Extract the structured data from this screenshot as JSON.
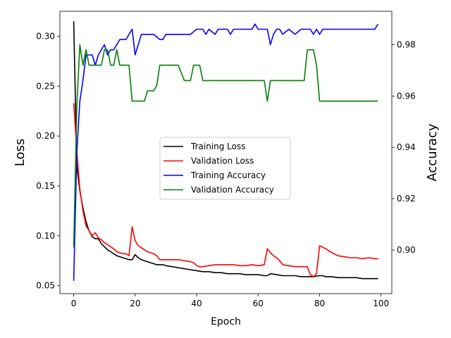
{
  "chart_data": {
    "type": "line",
    "xlabel": "Epoch",
    "ylabel_left": "Loss",
    "ylabel_right": "Accuracy",
    "xlim": [
      -4.5,
      103.5
    ],
    "ylim_left": [
      0.042,
      0.325
    ],
    "ylim_right": [
      0.883,
      0.993
    ],
    "x_ticks": [
      0,
      20,
      40,
      60,
      80,
      100
    ],
    "y_ticks_left": [
      0.05,
      0.1,
      0.15,
      0.2,
      0.25,
      0.3
    ],
    "y_ticks_right": [
      0.9,
      0.92,
      0.94,
      0.96,
      0.98
    ],
    "grid": false,
    "legend_position": "center",
    "series": [
      {
        "name": "Training Loss",
        "axis": "left",
        "color": "#000000",
        "x": [
          0,
          1,
          2,
          3,
          4,
          5,
          6,
          7,
          8,
          9,
          10,
          11,
          12,
          13,
          14,
          15,
          16,
          17,
          18,
          19,
          20,
          21,
          22,
          23,
          24,
          25,
          26,
          27,
          28,
          29,
          30,
          32,
          34,
          36,
          38,
          40,
          42,
          44,
          46,
          48,
          50,
          52,
          54,
          56,
          58,
          60,
          62,
          63,
          64,
          66,
          68,
          70,
          72,
          74,
          76,
          78,
          80,
          81,
          82,
          84,
          86,
          88,
          90,
          92,
          94,
          96,
          98,
          99
        ],
        "y": [
          0.315,
          0.17,
          0.145,
          0.128,
          0.114,
          0.105,
          0.099,
          0.097,
          0.097,
          0.092,
          0.089,
          0.086,
          0.084,
          0.082,
          0.08,
          0.079,
          0.078,
          0.077,
          0.076,
          0.076,
          0.081,
          0.078,
          0.076,
          0.075,
          0.074,
          0.073,
          0.072,
          0.071,
          0.071,
          0.071,
          0.07,
          0.069,
          0.068,
          0.067,
          0.066,
          0.065,
          0.064,
          0.064,
          0.063,
          0.063,
          0.062,
          0.062,
          0.062,
          0.061,
          0.061,
          0.061,
          0.06,
          0.06,
          0.062,
          0.061,
          0.06,
          0.06,
          0.06,
          0.059,
          0.059,
          0.059,
          0.06,
          0.06,
          0.059,
          0.059,
          0.058,
          0.058,
          0.058,
          0.058,
          0.057,
          0.057,
          0.057,
          0.057
        ]
      },
      {
        "name": "Validation Loss",
        "axis": "left",
        "color": "#ff0000",
        "x": [
          0,
          1,
          2,
          3,
          4,
          5,
          6,
          7,
          8,
          9,
          10,
          11,
          12,
          13,
          14,
          15,
          16,
          17,
          18,
          19,
          20,
          21,
          22,
          23,
          24,
          25,
          26,
          27,
          28,
          30,
          32,
          34,
          36,
          38,
          39,
          40,
          41,
          42,
          44,
          46,
          48,
          50,
          52,
          54,
          56,
          58,
          60,
          62,
          63,
          64,
          65,
          66,
          67,
          68,
          70,
          72,
          74,
          75,
          76,
          77,
          78,
          79,
          80,
          82,
          84,
          86,
          88,
          90,
          92,
          94,
          96,
          98,
          99
        ],
        "y": [
          0.233,
          0.185,
          0.147,
          0.125,
          0.11,
          0.105,
          0.1,
          0.103,
          0.098,
          0.096,
          0.093,
          0.091,
          0.089,
          0.087,
          0.084,
          0.083,
          0.082,
          0.082,
          0.08,
          0.109,
          0.095,
          0.09,
          0.088,
          0.086,
          0.084,
          0.083,
          0.082,
          0.08,
          0.076,
          0.076,
          0.076,
          0.076,
          0.075,
          0.074,
          0.073,
          0.07,
          0.069,
          0.069,
          0.07,
          0.071,
          0.071,
          0.071,
          0.071,
          0.07,
          0.07,
          0.071,
          0.07,
          0.071,
          0.087,
          0.083,
          0.08,
          0.078,
          0.075,
          0.071,
          0.07,
          0.069,
          0.069,
          0.069,
          0.069,
          0.061,
          0.059,
          0.062,
          0.09,
          0.087,
          0.083,
          0.08,
          0.079,
          0.078,
          0.078,
          0.077,
          0.078,
          0.077,
          0.077
        ]
      },
      {
        "name": "Training Accuracy",
        "axis": "right",
        "color": "#0000ff",
        "x": [
          0,
          1,
          2,
          3,
          4,
          5,
          6,
          7,
          8,
          9,
          10,
          11,
          12,
          13,
          14,
          15,
          16,
          17,
          18,
          19,
          20,
          21,
          22,
          23,
          24,
          26,
          28,
          29,
          30,
          32,
          34,
          36,
          38,
          40,
          42,
          43,
          44,
          46,
          47,
          48,
          50,
          51,
          52,
          54,
          56,
          58,
          59,
          60,
          62,
          63,
          64,
          65,
          66,
          67,
          68,
          70,
          72,
          74,
          76,
          77,
          78,
          79,
          80,
          81,
          82,
          84,
          86,
          88,
          90,
          92,
          94,
          96,
          98,
          99
        ],
        "y": [
          0.888,
          0.938,
          0.958,
          0.966,
          0.976,
          0.976,
          0.976,
          0.972,
          0.976,
          0.978,
          0.98,
          0.976,
          0.978,
          0.978,
          0.98,
          0.982,
          0.982,
          0.982,
          0.984,
          0.986,
          0.976,
          0.98,
          0.984,
          0.984,
          0.984,
          0.984,
          0.982,
          0.982,
          0.984,
          0.984,
          0.984,
          0.984,
          0.984,
          0.986,
          0.986,
          0.984,
          0.986,
          0.984,
          0.986,
          0.986,
          0.986,
          0.984,
          0.986,
          0.986,
          0.986,
          0.986,
          0.988,
          0.986,
          0.986,
          0.986,
          0.98,
          0.984,
          0.986,
          0.986,
          0.984,
          0.986,
          0.984,
          0.986,
          0.986,
          0.986,
          0.984,
          0.986,
          0.984,
          0.986,
          0.986,
          0.986,
          0.986,
          0.986,
          0.986,
          0.986,
          0.986,
          0.986,
          0.986,
          0.988
        ]
      },
      {
        "name": "Validation Accuracy",
        "axis": "right",
        "color": "#008000",
        "x": [
          0,
          1,
          2,
          3,
          4,
          5,
          6,
          7,
          8,
          9,
          10,
          11,
          12,
          13,
          14,
          15,
          16,
          17,
          18,
          19,
          20,
          21,
          22,
          23,
          24,
          25,
          26,
          27,
          28,
          30,
          32,
          33,
          34,
          36,
          38,
          39,
          40,
          41,
          42,
          44,
          46,
          48,
          50,
          52,
          54,
          56,
          58,
          60,
          62,
          63,
          64,
          65,
          66,
          68,
          70,
          72,
          74,
          75,
          76,
          77,
          78,
          79,
          80,
          82,
          84,
          86,
          88,
          90,
          92,
          94,
          96,
          98,
          99
        ],
        "y": [
          0.901,
          0.956,
          0.98,
          0.972,
          0.978,
          0.972,
          0.972,
          0.972,
          0.972,
          0.972,
          0.978,
          0.978,
          0.972,
          0.972,
          0.978,
          0.972,
          0.972,
          0.972,
          0.972,
          0.958,
          0.958,
          0.958,
          0.958,
          0.958,
          0.962,
          0.962,
          0.962,
          0.964,
          0.972,
          0.972,
          0.972,
          0.972,
          0.972,
          0.966,
          0.966,
          0.972,
          0.972,
          0.972,
          0.966,
          0.966,
          0.966,
          0.966,
          0.966,
          0.966,
          0.966,
          0.966,
          0.966,
          0.966,
          0.966,
          0.958,
          0.966,
          0.966,
          0.966,
          0.966,
          0.966,
          0.966,
          0.966,
          0.966,
          0.978,
          0.978,
          0.978,
          0.972,
          0.958,
          0.958,
          0.958,
          0.958,
          0.958,
          0.958,
          0.958,
          0.958,
          0.958,
          0.958,
          0.958
        ]
      }
    ]
  }
}
